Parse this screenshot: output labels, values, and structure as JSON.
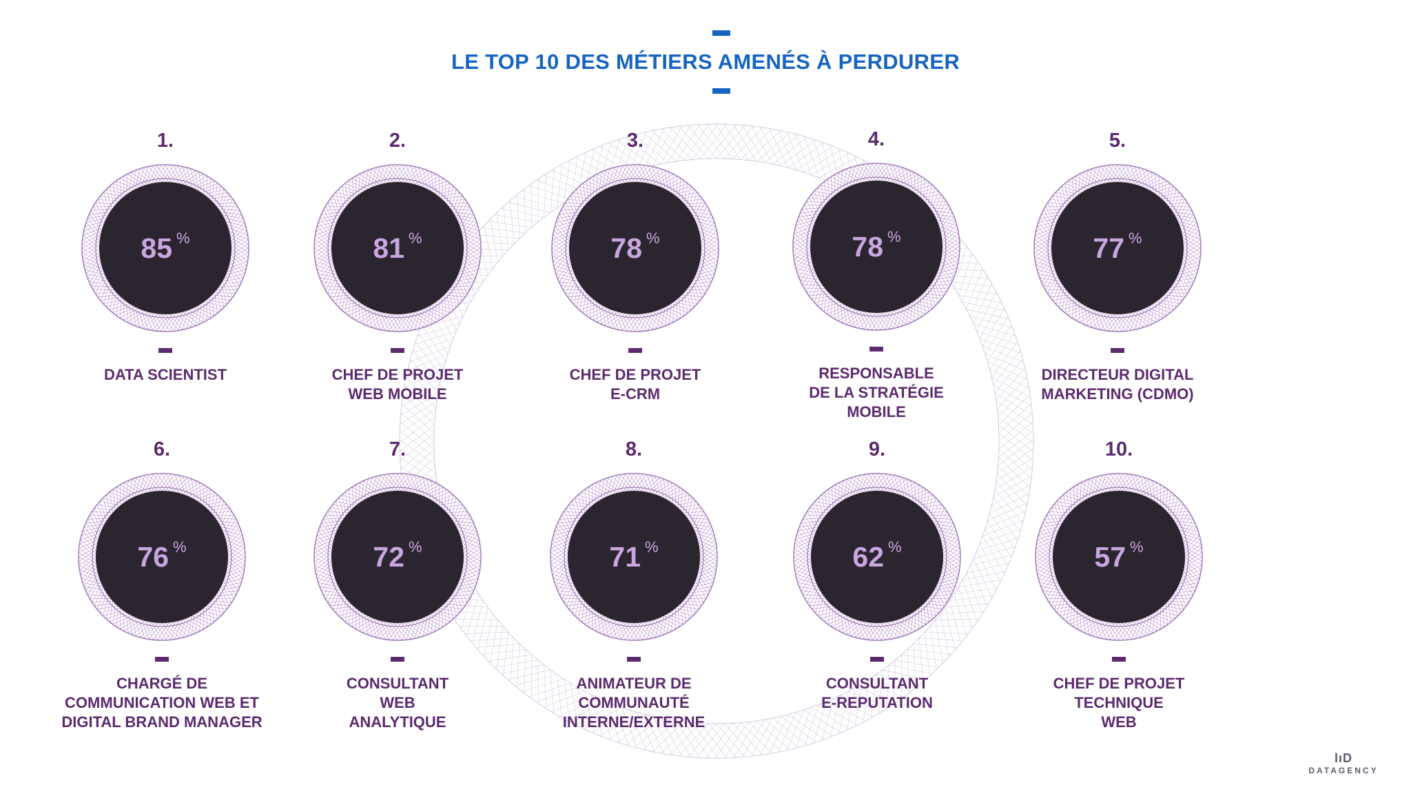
{
  "title": "LE TOP 10 DES MÉTIERS AMENÉS À PERDURER",
  "percent_sign": "%",
  "brand": {
    "name": "DATAGENCY",
    "mark": "lıD"
  },
  "colors": {
    "title": "#1565c0",
    "accent": "#5b2a6e",
    "badge_fill": "#2b2530",
    "percent_text": "#c9a6e0",
    "ring_line": "#a07ab8"
  },
  "items": [
    {
      "rank": "1.",
      "percent": "85",
      "label": "DATA SCIENTIST"
    },
    {
      "rank": "2.",
      "percent": "81",
      "label": "CHEF DE PROJET\nWEB MOBILE"
    },
    {
      "rank": "3.",
      "percent": "78",
      "label": "CHEF DE PROJET\nE-CRM"
    },
    {
      "rank": "4.",
      "percent": "78",
      "label": "RESPONSABLE\nDE LA STRATÉGIE\nMOBILE"
    },
    {
      "rank": "5.",
      "percent": "77",
      "label": "DIRECTEUR DIGITAL\nMARKETING (CDMO)"
    },
    {
      "rank": "6.",
      "percent": "76",
      "label": "CHARGÉ DE\nCOMMUNICATION WEB ET\nDIGITAL BRAND MANAGER"
    },
    {
      "rank": "7.",
      "percent": "72",
      "label": "CONSULTANT\nWEB\nANALYTIQUE"
    },
    {
      "rank": "8.",
      "percent": "71",
      "label": "ANIMATEUR DE\nCOMMUNAUTÉ\nINTERNE/EXTERNE"
    },
    {
      "rank": "9.",
      "percent": "62",
      "label": "CONSULTANT\nE-REPUTATION"
    },
    {
      "rank": "10.",
      "percent": "57",
      "label": "CHEF DE PROJET\nTECHNIQUE\nWEB"
    }
  ]
}
